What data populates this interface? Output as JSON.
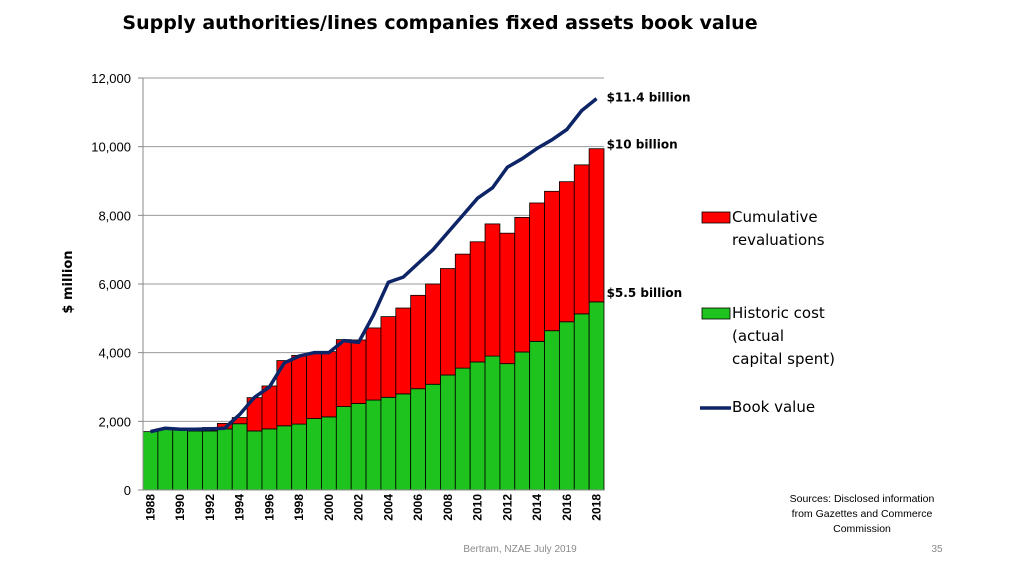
{
  "slide": {
    "title": "Supply authorities/lines  companies fixed assets book value",
    "sources": [
      "Sources: Disclosed information",
      "from Gazettes and Commerce",
      "Commission"
    ],
    "footer": "Bertram, NZAE July 2019",
    "page_number": "35"
  },
  "chart_data": {
    "type": "bar",
    "stacked": true,
    "title": "Supply authorities/lines  companies fixed assets book value",
    "xlabel": "",
    "ylabel": "$ million",
    "ylim": [
      0,
      12000
    ],
    "yticks": [
      0,
      2000,
      4000,
      6000,
      8000,
      10000,
      12000
    ],
    "ytick_labels": [
      "0",
      "2,000",
      "4,000",
      "6,000",
      "8,000",
      "10,000",
      "12,000"
    ],
    "grid": true,
    "x": [
      1988,
      1989,
      1990,
      1991,
      1992,
      1993,
      1994,
      1995,
      1996,
      1997,
      1998,
      1999,
      2000,
      2001,
      2002,
      2003,
      2004,
      2005,
      2006,
      2007,
      2008,
      2009,
      2010,
      2011,
      2012,
      2013,
      2014,
      2015,
      2016,
      2017,
      2018
    ],
    "x_tick_labels": [
      "1988",
      "1990",
      "1992",
      "1994",
      "1996",
      "1998",
      "2000",
      "2002",
      "2004",
      "2006",
      "2008",
      "2010",
      "2012",
      "2014",
      "2016",
      "2018"
    ],
    "series": [
      {
        "name": "Historic cost (actual capital spent)",
        "legend_lines": [
          "Historic cost",
          "(actual",
          "capital spent)"
        ],
        "kind": "bar",
        "color": "#1ec31e",
        "values": [
          1700,
          1780,
          1750,
          1720,
          1720,
          1780,
          1930,
          1720,
          1780,
          1870,
          1920,
          2080,
          2130,
          2430,
          2520,
          2620,
          2700,
          2800,
          2950,
          3080,
          3350,
          3550,
          3730,
          3900,
          3680,
          4020,
          4330,
          4640,
          4900,
          5130,
          5480
        ]
      },
      {
        "name": "Cumulative revaluations",
        "legend_lines": [
          "Cumulative",
          "revaluations"
        ],
        "kind": "bar",
        "color": "#ff0000",
        "values": [
          0,
          0,
          0,
          20,
          100,
          160,
          180,
          970,
          1250,
          1900,
          2000,
          1900,
          1900,
          1950,
          1850,
          2100,
          2350,
          2500,
          2720,
          2920,
          3100,
          3320,
          3500,
          3850,
          3800,
          3920,
          4030,
          4060,
          4080,
          4340,
          4460
        ]
      },
      {
        "name": "Book value",
        "legend_lines": [
          "Book value"
        ],
        "kind": "line",
        "color": "#0d2466",
        "values": [
          1700,
          1800,
          1770,
          1770,
          1780,
          1800,
          2200,
          2700,
          3000,
          3700,
          3900,
          4000,
          4000,
          4350,
          4300,
          5100,
          6050,
          6200,
          6600,
          7000,
          7500,
          8000,
          8500,
          8800,
          9400,
          9650,
          9950,
          10200,
          10500,
          11050,
          11400
        ]
      }
    ],
    "annotations": [
      {
        "text": "$11.4 billion",
        "x": 2018,
        "y": 11400
      },
      {
        "text": "$10 billion",
        "x": 2018,
        "y": 9950
      },
      {
        "text": "$5.5 billion",
        "x": 2018,
        "y": 5480
      }
    ]
  }
}
